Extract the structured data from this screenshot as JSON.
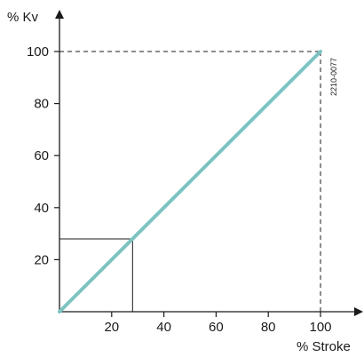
{
  "chart_data": {
    "type": "line",
    "ylabel": "% Kv",
    "xlabel": "% Stroke",
    "figure_code": "2210-0077",
    "xlim": [
      0,
      100
    ],
    "ylim": [
      0,
      100
    ],
    "x_ticks": [
      20,
      40,
      60,
      80,
      100
    ],
    "y_ticks": [
      20,
      40,
      60,
      80,
      100
    ],
    "grid": false,
    "series": [
      {
        "x": [
          0,
          100
        ],
        "y": [
          0,
          100
        ],
        "color": "#7cc3c3"
      }
    ],
    "reference_lines": [
      {
        "x": 28,
        "y": 28,
        "style": "solid"
      },
      {
        "x": 100,
        "y": 100,
        "style": "dashed"
      }
    ]
  }
}
